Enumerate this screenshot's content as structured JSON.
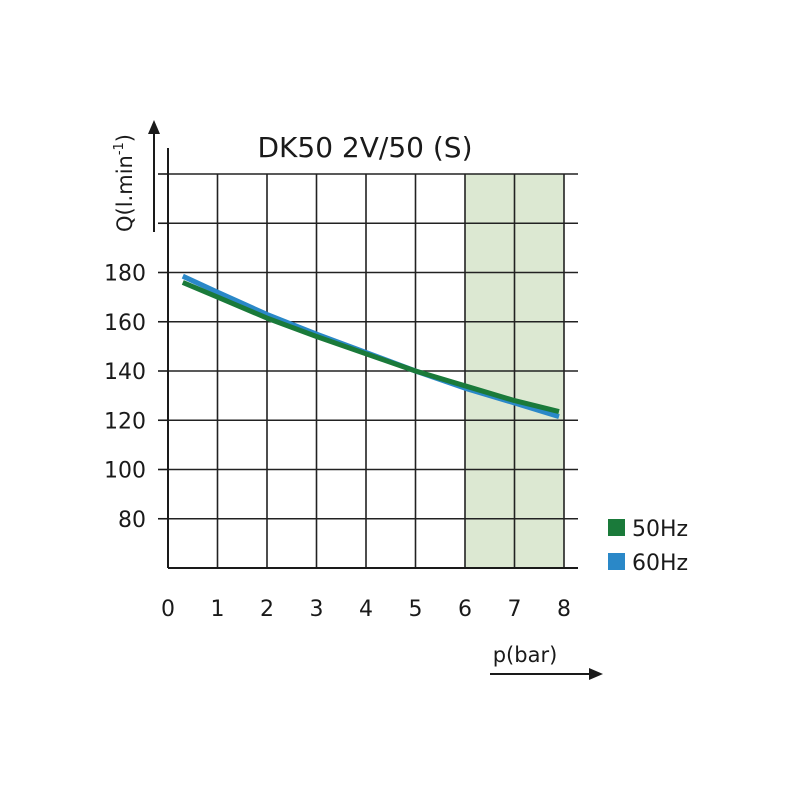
{
  "chart_data": {
    "type": "line",
    "title": "DK50 2V/50 (S)",
    "xlabel": "p(bar)",
    "ylabel": "Q(l.min",
    "ylabel_superscript": "-1",
    "ylabel_close": ")",
    "xlim": [
      0,
      8
    ],
    "ylim": [
      60,
      220
    ],
    "x_ticks": [
      "0",
      "1",
      "2",
      "3",
      "4",
      "5",
      "6",
      "7",
      "8"
    ],
    "y_ticks": [
      "80",
      "100",
      "120",
      "140",
      "160",
      "180"
    ],
    "y_tick_values": [
      80,
      100,
      120,
      140,
      160,
      180
    ],
    "grid": true,
    "shaded_region": {
      "x_from": 6,
      "x_to": 8,
      "color": "#dce8d2"
    },
    "legend_position": "bottom-right",
    "series": [
      {
        "name": "50Hz",
        "color": "#1a7a3a",
        "x": [
          0.3,
          1,
          2,
          3,
          4,
          5,
          6,
          7,
          7.9
        ],
        "y": [
          176,
          170,
          161.5,
          154,
          147,
          140,
          134,
          128,
          123.5
        ]
      },
      {
        "name": "60Hz",
        "color": "#2a88c8",
        "x": [
          0.3,
          1,
          2,
          3,
          4,
          5,
          6,
          7,
          7.9
        ],
        "y": [
          178.5,
          172,
          163,
          155,
          147.5,
          140,
          133,
          127,
          121.5
        ]
      }
    ]
  }
}
